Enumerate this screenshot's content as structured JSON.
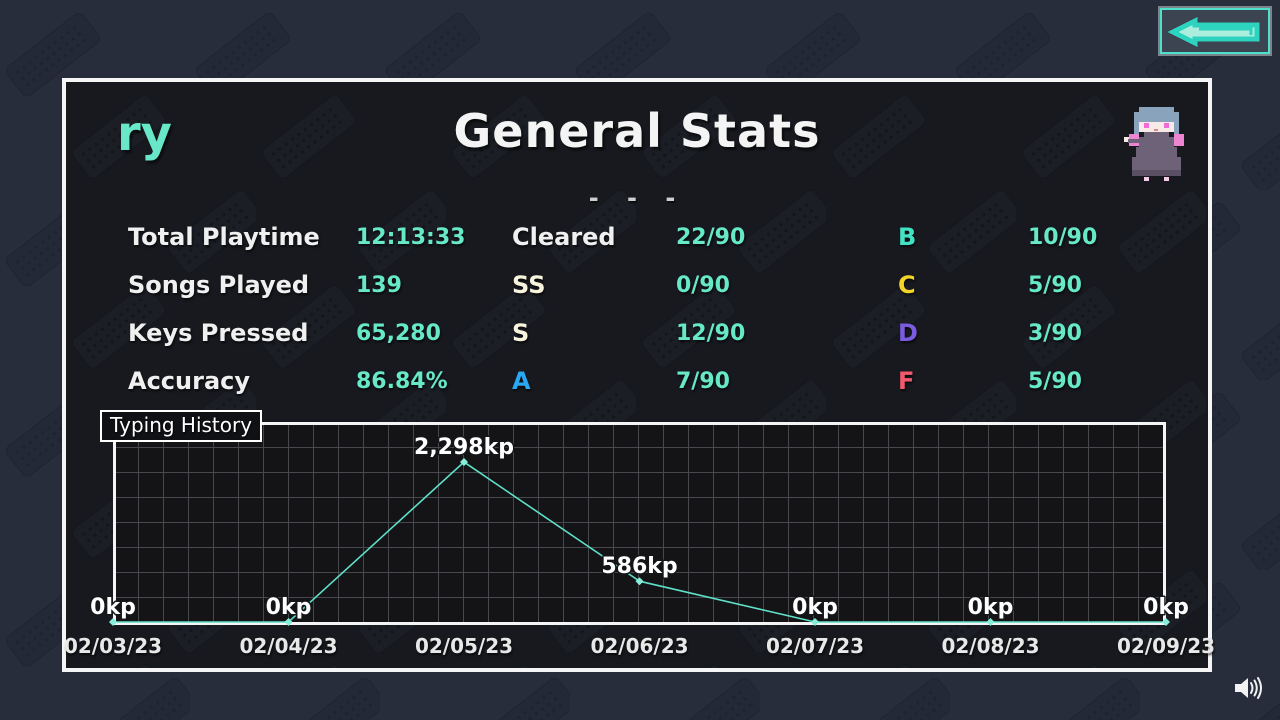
{
  "header": {
    "username": "ry",
    "title": "General Stats",
    "divider": "- - -",
    "back_icon": "back-arrow-icon",
    "character": "character-sprite"
  },
  "stats": {
    "col1": [
      {
        "label": "Total Playtime",
        "value": "12:13:33",
        "color": "#f0f0f0"
      },
      {
        "label": "Songs Played",
        "value": "139",
        "color": "#f0f0f0"
      },
      {
        "label": "Keys Pressed",
        "value": "65,280",
        "color": "#f0f0f0"
      },
      {
        "label": "Accuracy",
        "value": "86.84%",
        "color": "#f0f0f0"
      }
    ],
    "col2": [
      {
        "label": "Cleared",
        "value": "22/90",
        "color": "#f0f0f0"
      },
      {
        "label": "SS",
        "value": "0/90",
        "color": "#f7f3dc"
      },
      {
        "label": "S",
        "value": "12/90",
        "color": "#f7f3dc"
      },
      {
        "label": "A",
        "value": "7/90",
        "color": "#2aa9f2"
      }
    ],
    "col3": [
      {
        "label": "B",
        "value": "10/90",
        "color": "#43e2c5"
      },
      {
        "label": "C",
        "value": "5/90",
        "color": "#f3d52a"
      },
      {
        "label": "D",
        "value": "3/90",
        "color": "#7b5ce0"
      },
      {
        "label": "F",
        "value": "5/90",
        "color": "#f2596e"
      }
    ],
    "value_color": "#67e8c7"
  },
  "chart_data": {
    "type": "line",
    "title": "Typing History",
    "x": [
      "02/03/23",
      "02/04/23",
      "02/05/23",
      "02/06/23",
      "02/07/23",
      "02/08/23",
      "02/09/23"
    ],
    "values": [
      0,
      0,
      2298,
      586,
      0,
      0,
      0
    ],
    "point_labels": [
      "0kp",
      "0kp",
      "2,298kp",
      "586kp",
      "0kp",
      "0kp",
      "0kp"
    ],
    "unit": "kp",
    "ylabel": "",
    "xlabel": "",
    "ylim": [
      0,
      2873
    ],
    "grid": true,
    "legend": "none",
    "line_color": "#5fe0c8",
    "marker_color": "#86efd9"
  },
  "footer": {
    "speaker": "speaker-icon"
  }
}
